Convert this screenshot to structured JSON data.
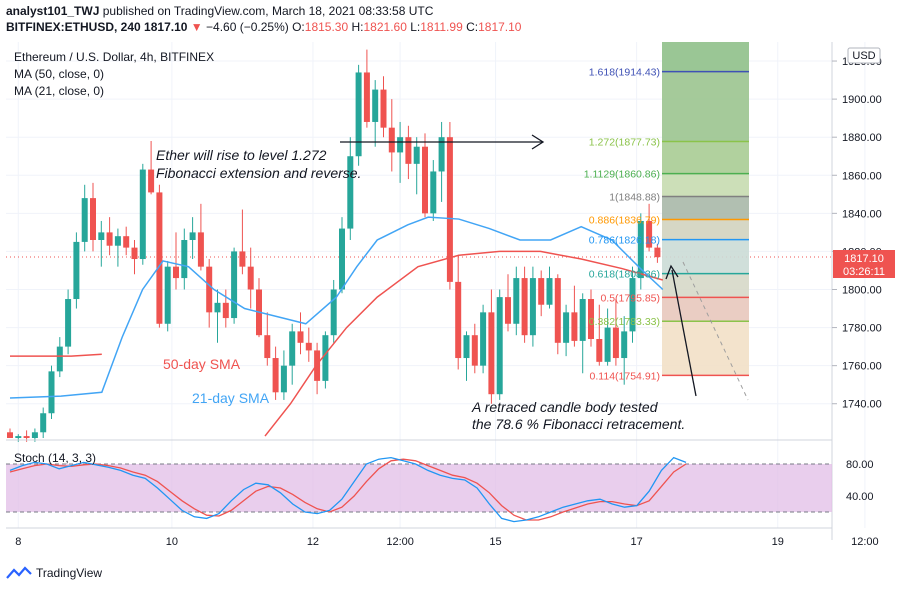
{
  "header": {
    "author": "analyst101_TWJ",
    "published_text": "published on TradingView.com, March 18, 2021 08:33:58 UTC",
    "symbol": "BITFINEX:ETHUSD, 240",
    "price": "1817.10",
    "change_symbol": "▼",
    "change": "−4.60 (−0.25%)",
    "ohlc": [
      {
        "k": "O:",
        "v": "1815.30"
      },
      {
        "k": "H:",
        "v": "1821.60"
      },
      {
        "k": "L:",
        "v": "1811.99"
      },
      {
        "k": "C:",
        "v": "1817.10"
      }
    ]
  },
  "legend": {
    "title": "Ethereum / U.S. Dollar, 4h, BITFINEX",
    "ma50": "MA (50, close, 0)",
    "ma21": "MA (21, close, 0)",
    "stoch": "Stoch (14, 3, 3)"
  },
  "price_axis": {
    "currency": "USD",
    "last_price": "1817.10",
    "countdown": "03:26:11"
  },
  "annotations": {
    "forecast_line1": "Ether will rise to level 1.272",
    "forecast_line2": "Fibonacci extension and reverse.",
    "retrace_line1": "A retraced candle body tested",
    "retrace_line2": "the 78.6 % Fibonacci retracement.",
    "sma50": "50-day SMA",
    "sma21": "21-day SMA"
  },
  "footer": {
    "brand": "TradingView"
  },
  "chart_data": {
    "type": "candlestick",
    "title": "Ethereum / U.S. Dollar, 4h, BITFINEX",
    "ylim": [
      1722,
      1930
    ],
    "yticks": [
      1740,
      1760,
      1780,
      1800,
      1820,
      1840,
      1860,
      1880,
      1900,
      1920
    ],
    "x_ticks": [
      {
        "label": "8",
        "i": 1
      },
      {
        "label": "10",
        "i": 19.5
      },
      {
        "label": "12",
        "i": 36.5
      },
      {
        "label": "12:00",
        "i": 47
      },
      {
        "label": "15",
        "i": 58.5
      },
      {
        "label": "17",
        "i": 75.5
      },
      {
        "label": "19",
        "i": 92.5
      },
      {
        "label": "12:00",
        "i": 103
      }
    ],
    "candles": [
      [
        1725,
        1727,
        1722,
        1722
      ],
      [
        1722,
        1724,
        1720,
        1723
      ],
      [
        1723,
        1726,
        1720,
        1722
      ],
      [
        1722,
        1727,
        1720,
        1725
      ],
      [
        1725,
        1738,
        1722,
        1735
      ],
      [
        1735,
        1760,
        1732,
        1757
      ],
      [
        1757,
        1775,
        1754,
        1770
      ],
      [
        1770,
        1800,
        1766,
        1795
      ],
      [
        1795,
        1830,
        1790,
        1825
      ],
      [
        1825,
        1855,
        1820,
        1848
      ],
      [
        1848,
        1856,
        1820,
        1826
      ],
      [
        1826,
        1836,
        1812,
        1830
      ],
      [
        1830,
        1838,
        1818,
        1823
      ],
      [
        1823,
        1832,
        1812,
        1828
      ],
      [
        1828,
        1833,
        1818,
        1822
      ],
      [
        1822,
        1826,
        1808,
        1816
      ],
      [
        1816,
        1866,
        1813,
        1863
      ],
      [
        1863,
        1878,
        1850,
        1851
      ],
      [
        1851,
        1855,
        1780,
        1782
      ],
      [
        1782,
        1815,
        1778,
        1812
      ],
      [
        1812,
        1830,
        1800,
        1806
      ],
      [
        1806,
        1832,
        1800,
        1826
      ],
      [
        1826,
        1838,
        1816,
        1830
      ],
      [
        1830,
        1845,
        1810,
        1812
      ],
      [
        1812,
        1816,
        1780,
        1788
      ],
      [
        1788,
        1800,
        1772,
        1793
      ],
      [
        1793,
        1800,
        1780,
        1785
      ],
      [
        1785,
        1822,
        1782,
        1820
      ],
      [
        1820,
        1842,
        1808,
        1812
      ],
      [
        1812,
        1822,
        1790,
        1800
      ],
      [
        1800,
        1806,
        1775,
        1776
      ],
      [
        1776,
        1788,
        1760,
        1764
      ],
      [
        1764,
        1770,
        1742,
        1746
      ],
      [
        1746,
        1768,
        1742,
        1760
      ],
      [
        1760,
        1782,
        1750,
        1778
      ],
      [
        1778,
        1788,
        1766,
        1772
      ],
      [
        1772,
        1780,
        1762,
        1768
      ],
      [
        1768,
        1772,
        1745,
        1752
      ],
      [
        1752,
        1778,
        1748,
        1776
      ],
      [
        1776,
        1805,
        1772,
        1800
      ],
      [
        1800,
        1838,
        1798,
        1832
      ],
      [
        1832,
        1880,
        1826,
        1870
      ],
      [
        1870,
        1918,
        1865,
        1914
      ],
      [
        1914,
        1926,
        1885,
        1888
      ],
      [
        1888,
        1910,
        1875,
        1905
      ],
      [
        1905,
        1912,
        1880,
        1885
      ],
      [
        1885,
        1900,
        1862,
        1872
      ],
      [
        1872,
        1888,
        1856,
        1880
      ],
      [
        1880,
        1886,
        1858,
        1866
      ],
      [
        1866,
        1880,
        1850,
        1875
      ],
      [
        1875,
        1882,
        1838,
        1840
      ],
      [
        1840,
        1868,
        1836,
        1862
      ],
      [
        1862,
        1888,
        1846,
        1880
      ],
      [
        1880,
        1888,
        1800,
        1804
      ],
      [
        1804,
        1818,
        1758,
        1764
      ],
      [
        1764,
        1778,
        1752,
        1776
      ],
      [
        1776,
        1782,
        1756,
        1760
      ],
      [
        1760,
        1792,
        1756,
        1788
      ],
      [
        1788,
        1800,
        1740,
        1745
      ],
      [
        1745,
        1800,
        1742,
        1796
      ],
      [
        1796,
        1808,
        1778,
        1782
      ],
      [
        1782,
        1812,
        1776,
        1806
      ],
      [
        1806,
        1812,
        1772,
        1776
      ],
      [
        1776,
        1812,
        1770,
        1806
      ],
      [
        1806,
        1810,
        1786,
        1792
      ],
      [
        1792,
        1812,
        1790,
        1806
      ],
      [
        1806,
        1808,
        1766,
        1772
      ],
      [
        1772,
        1792,
        1765,
        1788
      ],
      [
        1788,
        1802,
        1770,
        1773
      ],
      [
        1773,
        1798,
        1756,
        1795
      ],
      [
        1795,
        1800,
        1770,
        1774
      ],
      [
        1774,
        1792,
        1760,
        1762
      ],
      [
        1762,
        1790,
        1760,
        1780
      ],
      [
        1780,
        1795,
        1760,
        1764
      ],
      [
        1764,
        1786,
        1750,
        1778
      ],
      [
        1778,
        1812,
        1772,
        1806
      ],
      [
        1806,
        1840,
        1800,
        1836
      ],
      [
        1836,
        1845,
        1820,
        1822
      ],
      [
        1822,
        1824,
        1814,
        1817
      ]
    ],
    "ma50": [
      [
        0,
        1765
      ],
      [
        12,
        1765
      ],
      [
        18,
        1766
      ],
      [
        50,
        1723
      ],
      [
        55,
        1740
      ],
      [
        60,
        1760
      ],
      [
        66,
        1780
      ],
      [
        72,
        1796
      ],
      [
        80,
        1812
      ],
      [
        88,
        1818
      ],
      [
        96,
        1820
      ],
      [
        104,
        1820
      ],
      [
        112,
        1816
      ],
      [
        120,
        1811
      ],
      [
        128,
        1805
      ]
    ],
    "ma21": [
      [
        0,
        1743
      ],
      [
        10,
        1744
      ],
      [
        18,
        1746
      ],
      [
        22,
        1775
      ],
      [
        26,
        1800
      ],
      [
        30,
        1815
      ],
      [
        35,
        1812
      ],
      [
        40,
        1800
      ],
      [
        46,
        1790
      ],
      [
        52,
        1786
      ],
      [
        58,
        1782
      ],
      [
        64,
        1796
      ],
      [
        68,
        1812
      ],
      [
        72,
        1826
      ],
      [
        78,
        1834
      ],
      [
        82,
        1838
      ],
      [
        88,
        1837
      ],
      [
        94,
        1832
      ],
      [
        100,
        1826
      ],
      [
        106,
        1826
      ],
      [
        112,
        1833
      ],
      [
        118,
        1826
      ],
      [
        124,
        1810
      ],
      [
        128,
        1800
      ]
    ],
    "fib_levels": [
      {
        "label": "1.618(1914.43)",
        "value": 1914.43,
        "color": "#3f51b5"
      },
      {
        "label": "1.272(1877.73)",
        "value": 1877.73,
        "color": "#8bc34a"
      },
      {
        "label": "1.1129(1860.86)",
        "value": 1860.86,
        "color": "#4caf50"
      },
      {
        "label": "1(1848.88)",
        "value": 1848.88,
        "color": "#808080"
      },
      {
        "label": "0.886(1836.79)",
        "value": 1836.79,
        "color": "#ff9800"
      },
      {
        "label": "0.786(1826.18)",
        "value": 1826.18,
        "color": "#2196f3"
      },
      {
        "label": "0.618(1808.36)",
        "value": 1808.36,
        "color": "#26a69a"
      },
      {
        "label": "0.5(1795.85)",
        "value": 1795.85,
        "color": "#ef5350"
      },
      {
        "label": "0.382(1783.33)",
        "value": 1783.33,
        "color": "#8bc34a"
      },
      {
        "label": "0.114(1754.91)",
        "value": 1754.91,
        "color": "#ef5350"
      }
    ],
    "stochastic": {
      "ylim": [
        0,
        100
      ],
      "levels": [
        20,
        80
      ],
      "yticks": [
        40,
        80
      ],
      "k": [
        72,
        78,
        82,
        80,
        74,
        78,
        82,
        79,
        76,
        72,
        66,
        62,
        50,
        36,
        22,
        14,
        12,
        18,
        34,
        48,
        56,
        54,
        44,
        30,
        20,
        18,
        22,
        36,
        58,
        80,
        86,
        88,
        84,
        80,
        72,
        66,
        62,
        60,
        50,
        30,
        12,
        8,
        10,
        14,
        20,
        26,
        30,
        34,
        36,
        30,
        26,
        28,
        46,
        72,
        88,
        82
      ],
      "d": [
        70,
        74,
        78,
        80,
        78,
        77,
        79,
        80,
        78,
        75,
        70,
        66,
        58,
        46,
        34,
        24,
        16,
        15,
        22,
        34,
        46,
        52,
        50,
        42,
        32,
        24,
        20,
        26,
        40,
        58,
        74,
        84,
        86,
        84,
        78,
        72,
        66,
        63,
        56,
        44,
        28,
        16,
        10,
        10,
        14,
        20,
        25,
        30,
        33,
        33,
        30,
        28,
        34,
        52,
        70,
        80
      ]
    }
  }
}
